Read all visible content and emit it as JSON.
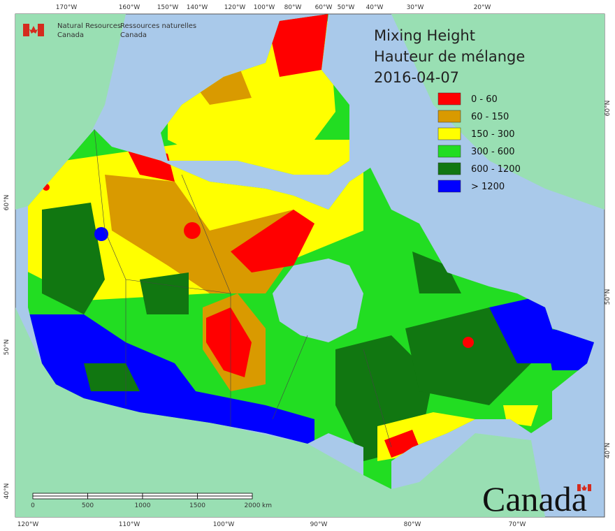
{
  "agency": {
    "en": [
      "Natural Resources",
      "Canada"
    ],
    "fr": [
      "Ressources naturelles",
      "Canada"
    ]
  },
  "title": [
    "Mixing Height",
    "Hauteur de mélange",
    "2016-04-07"
  ],
  "legend": [
    {
      "label": "0 - 60",
      "color": "#ff0000"
    },
    {
      "label": "60 - 150",
      "color": "#d99a00"
    },
    {
      "label": "150 - 300",
      "color": "#ffff00"
    },
    {
      "label": "300 - 600",
      "color": "#22dd22"
    },
    {
      "label": "600 - 1200",
      "color": "#117711"
    },
    {
      "label": "> 1200",
      "color": "#0000ff"
    }
  ],
  "graticule": {
    "top": [
      "170°W",
      "160°W",
      "150°W",
      "140°W",
      "120°W",
      "100°W",
      "80°W",
      "60°W",
      "50°W",
      "40°W",
      "30°W",
      "20°W"
    ],
    "bottom": [
      "120°W",
      "110°W",
      "100°W",
      "90°W",
      "80°W",
      "70°W"
    ],
    "left": [
      "60°N",
      "50°N",
      "40°N"
    ],
    "right": [
      "60°N",
      "50°N",
      "40°N"
    ]
  },
  "scale_bar": {
    "labels": [
      "0",
      "500",
      "1000",
      "1500",
      "2000"
    ],
    "unit": "km"
  },
  "wordmark": "Canada"
}
